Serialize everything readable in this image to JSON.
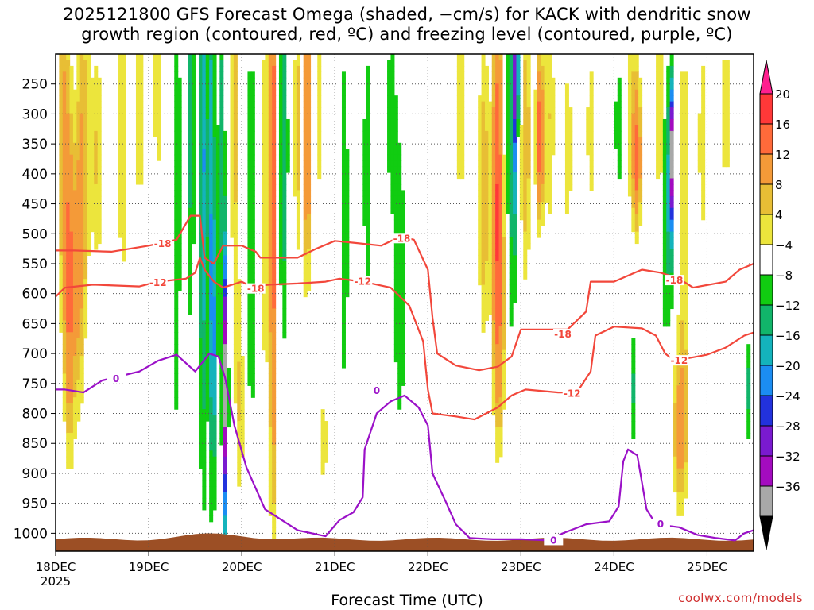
{
  "chart_data": {
    "type": "heatmap",
    "title_line1": "2025121800 GFS Forecast Omega (shaded, −cm/s) for KACK with dendritic snow",
    "title_line2": "growth region (contoured, red, ºC) and freezing level (contoured, purple, ºC)",
    "xlabel": "Forecast Time (UTC)",
    "ylabel": "Pressure (hPa)",
    "credit": "coolwx.com/models",
    "x_axis": {
      "range_days": [
        0,
        7.5
      ],
      "ticks": [
        {
          "day": 0,
          "label": "18DEC",
          "sublabel": "2025"
        },
        {
          "day": 1,
          "label": "19DEC"
        },
        {
          "day": 2,
          "label": "20DEC"
        },
        {
          "day": 3,
          "label": "21DEC"
        },
        {
          "day": 4,
          "label": "22DEC"
        },
        {
          "day": 5,
          "label": "23DEC"
        },
        {
          "day": 6,
          "label": "24DEC"
        },
        {
          "day": 7,
          "label": "25DEC"
        }
      ]
    },
    "y_axis": {
      "range_hpa": [
        200,
        1030
      ],
      "ticks": [
        250,
        300,
        350,
        400,
        450,
        500,
        550,
        600,
        650,
        700,
        750,
        800,
        850,
        900,
        950,
        1000
      ]
    },
    "colorbar": {
      "labels": [
        "20",
        "16",
        "12",
        "8",
        "4",
        "−4",
        "−8",
        "−12",
        "−16",
        "−20",
        "−24",
        "−28",
        "−32",
        "−36"
      ],
      "colors": [
        "#ff1f8f",
        "#ff3838",
        "#ff6a3a",
        "#f49a38",
        "#e8be35",
        "#ece53c",
        "#ffffff",
        "#11cc11",
        "#11b56a",
        "#14b3bc",
        "#1b8df2",
        "#2232dd",
        "#7a1ad0",
        "#a30bbf",
        "#a8a8a8",
        "#000000"
      ]
    },
    "contour_labels": {
      "dgz_upper": "-18",
      "dgz_lower": "-12",
      "freezing": "0"
    },
    "omega_blobs": [
      {
        "d": 0.08,
        "p": 320,
        "sd": 0.05,
        "sp": 280,
        "v": 8
      },
      {
        "d": 0.15,
        "p": 600,
        "sd": 0.04,
        "sp": 200,
        "v": 11
      },
      {
        "d": 0.3,
        "p": 330,
        "sd": 0.06,
        "sp": 200,
        "v": 7
      },
      {
        "d": 0.25,
        "p": 600,
        "sd": 0.05,
        "sp": 180,
        "v": 7
      },
      {
        "d": 0.45,
        "p": 380,
        "sd": 0.05,
        "sp": 160,
        "v": 6
      },
      {
        "d": 0.72,
        "p": 350,
        "sd": 0.05,
        "sp": 220,
        "v": 6
      },
      {
        "d": 0.9,
        "p": 300,
        "sd": 0.05,
        "sp": 200,
        "v": 5
      },
      {
        "d": 1.1,
        "p": 260,
        "sd": 0.06,
        "sp": 180,
        "v": 5
      },
      {
        "d": 1.3,
        "p": 420,
        "sd": 0.03,
        "sp": 320,
        "v": -8
      },
      {
        "d": 1.45,
        "p": 300,
        "sd": 0.03,
        "sp": 250,
        "v": -10
      },
      {
        "d": 1.58,
        "p": 380,
        "sd": 0.025,
        "sp": 350,
        "v": -18
      },
      {
        "d": 1.67,
        "p": 400,
        "sd": 0.03,
        "sp": 330,
        "v": -14
      },
      {
        "d": 1.78,
        "p": 330,
        "sd": 0.025,
        "sp": 250,
        "v": -9
      },
      {
        "d": 1.7,
        "p": 680,
        "sd": 0.025,
        "sp": 160,
        "v": -12
      },
      {
        "d": 1.82,
        "p": 760,
        "sd": 0.018,
        "sp": 170,
        "v": -34
      },
      {
        "d": 1.92,
        "p": 300,
        "sd": 0.035,
        "sp": 260,
        "v": 7
      },
      {
        "d": 1.98,
        "p": 780,
        "sd": 0.04,
        "sp": 160,
        "v": 6
      },
      {
        "d": 2.1,
        "p": 500,
        "sd": 0.04,
        "sp": 250,
        "v": -8
      },
      {
        "d": 2.25,
        "p": 450,
        "sd": 0.03,
        "sp": 380,
        "v": 6
      },
      {
        "d": 2.33,
        "p": 420,
        "sd": 0.02,
        "sp": 420,
        "v": 17
      },
      {
        "d": 2.45,
        "p": 350,
        "sd": 0.03,
        "sp": 220,
        "v": -12
      },
      {
        "d": 2.6,
        "p": 320,
        "sd": 0.035,
        "sp": 200,
        "v": 7
      },
      {
        "d": 2.7,
        "p": 320,
        "sd": 0.02,
        "sp": 200,
        "v": 16
      },
      {
        "d": 2.82,
        "p": 300,
        "sd": 0.03,
        "sp": 200,
        "v": 5
      },
      {
        "d": 2.88,
        "p": 850,
        "sd": 0.05,
        "sp": 80,
        "v": 5
      },
      {
        "d": 3.1,
        "p": 480,
        "sd": 0.04,
        "sp": 280,
        "v": -6
      },
      {
        "d": 3.35,
        "p": 400,
        "sd": 0.04,
        "sp": 200,
        "v": -6
      },
      {
        "d": 3.7,
        "p": 600,
        "sd": 0.05,
        "sp": 180,
        "v": -7
      },
      {
        "d": 3.6,
        "p": 300,
        "sd": 0.06,
        "sp": 150,
        "v": -5
      },
      {
        "d": 4.35,
        "p": 300,
        "sd": 0.05,
        "sp": 200,
        "v": 5
      },
      {
        "d": 4.6,
        "p": 430,
        "sd": 0.05,
        "sp": 200,
        "v": 8
      },
      {
        "d": 4.75,
        "p": 400,
        "sd": 0.04,
        "sp": 250,
        "v": 14
      },
      {
        "d": 4.78,
        "p": 640,
        "sd": 0.06,
        "sp": 170,
        "v": 6
      },
      {
        "d": 4.88,
        "p": 380,
        "sd": 0.025,
        "sp": 250,
        "v": -10
      },
      {
        "d": 4.92,
        "p": 350,
        "sd": 0.012,
        "sp": 160,
        "v": -22
      },
      {
        "d": 4.95,
        "p": 230,
        "sd": 0.025,
        "sp": 80,
        "v": -20
      },
      {
        "d": 5.05,
        "p": 350,
        "sd": 0.045,
        "sp": 190,
        "v": 8
      },
      {
        "d": 5.2,
        "p": 340,
        "sd": 0.03,
        "sp": 100,
        "v": 14
      },
      {
        "d": 5.3,
        "p": 300,
        "sd": 0.05,
        "sp": 180,
        "v": 6
      },
      {
        "d": 5.5,
        "p": 360,
        "sd": 0.06,
        "sp": 160,
        "v": 5
      },
      {
        "d": 5.75,
        "p": 330,
        "sd": 0.05,
        "sp": 150,
        "v": 5
      },
      {
        "d": 6.05,
        "p": 320,
        "sd": 0.04,
        "sp": 120,
        "v": -6
      },
      {
        "d": 6.2,
        "p": 300,
        "sd": 0.07,
        "sp": 160,
        "v": 6
      },
      {
        "d": 6.25,
        "p": 380,
        "sd": 0.03,
        "sp": 80,
        "v": 10
      },
      {
        "d": 6.2,
        "p": 760,
        "sd": 0.02,
        "sp": 70,
        "v": -9
      },
      {
        "d": 6.5,
        "p": 300,
        "sd": 0.06,
        "sp": 150,
        "v": 6
      },
      {
        "d": 6.55,
        "p": 400,
        "sd": 0.02,
        "sp": 200,
        "v": -10
      },
      {
        "d": 6.6,
        "p": 430,
        "sd": 0.018,
        "sp": 140,
        "v": -20
      },
      {
        "d": 6.62,
        "p": 360,
        "sd": 0.015,
        "sp": 80,
        "v": -26
      },
      {
        "d": 6.75,
        "p": 480,
        "sd": 0.05,
        "sp": 300,
        "v": 6
      },
      {
        "d": 6.7,
        "p": 830,
        "sd": 0.06,
        "sp": 100,
        "v": 8
      },
      {
        "d": 6.95,
        "p": 350,
        "sd": 0.05,
        "sp": 200,
        "v": 5
      },
      {
        "d": 7.2,
        "p": 300,
        "sd": 0.05,
        "sp": 160,
        "v": 5
      },
      {
        "d": 7.45,
        "p": 760,
        "sd": 0.02,
        "sp": 60,
        "v": -10
      }
    ],
    "dgz_upper_contour": [
      [
        0,
        528
      ],
      [
        0.2,
        528
      ],
      [
        0.6,
        530
      ],
      [
        1.0,
        520
      ],
      [
        1.3,
        510
      ],
      [
        1.45,
        470
      ],
      [
        1.55,
        470
      ],
      [
        1.6,
        540
      ],
      [
        1.7,
        550
      ],
      [
        1.8,
        520
      ],
      [
        2.0,
        520
      ],
      [
        2.15,
        530
      ],
      [
        2.2,
        540
      ],
      [
        2.6,
        540
      ],
      [
        2.8,
        525
      ],
      [
        3.0,
        512
      ],
      [
        3.2,
        515
      ],
      [
        3.5,
        520
      ],
      [
        3.7,
        505
      ],
      [
        3.85,
        510
      ],
      [
        4.0,
        560
      ],
      [
        4.05,
        640
      ],
      [
        4.1,
        700
      ],
      [
        4.3,
        720
      ],
      [
        4.55,
        728
      ],
      [
        4.75,
        722
      ],
      [
        4.9,
        705
      ],
      [
        5.0,
        660
      ],
      [
        5.3,
        660
      ],
      [
        5.5,
        660
      ],
      [
        5.7,
        630
      ],
      [
        5.75,
        580
      ],
      [
        6.0,
        580
      ],
      [
        6.3,
        560
      ],
      [
        6.5,
        565
      ],
      [
        6.7,
        575
      ],
      [
        6.85,
        590
      ],
      [
        7.2,
        580
      ],
      [
        7.35,
        560
      ],
      [
        7.5,
        550
      ]
    ],
    "dgz_lower_contour": [
      [
        0,
        605
      ],
      [
        0.1,
        590
      ],
      [
        0.4,
        585
      ],
      [
        0.9,
        588
      ],
      [
        1.1,
        580
      ],
      [
        1.4,
        575
      ],
      [
        1.5,
        565
      ],
      [
        1.55,
        540
      ],
      [
        1.6,
        560
      ],
      [
        1.7,
        580
      ],
      [
        1.8,
        590
      ],
      [
        2.0,
        580
      ],
      [
        2.1,
        588
      ],
      [
        2.3,
        585
      ],
      [
        2.6,
        583
      ],
      [
        2.9,
        580
      ],
      [
        3.05,
        575
      ],
      [
        3.3,
        580
      ],
      [
        3.6,
        590
      ],
      [
        3.8,
        620
      ],
      [
        3.95,
        680
      ],
      [
        4.0,
        760
      ],
      [
        4.05,
        800
      ],
      [
        4.3,
        805
      ],
      [
        4.5,
        810
      ],
      [
        4.75,
        790
      ],
      [
        4.9,
        770
      ],
      [
        5.05,
        760
      ],
      [
        5.4,
        765
      ],
      [
        5.6,
        765
      ],
      [
        5.75,
        730
      ],
      [
        5.8,
        670
      ],
      [
        6.0,
        655
      ],
      [
        6.3,
        658
      ],
      [
        6.45,
        670
      ],
      [
        6.55,
        700
      ],
      [
        6.65,
        712
      ],
      [
        7.0,
        702
      ],
      [
        7.2,
        690
      ],
      [
        7.4,
        670
      ],
      [
        7.5,
        665
      ]
    ],
    "freezing_contour": [
      [
        0,
        760
      ],
      [
        0.1,
        760
      ],
      [
        0.3,
        765
      ],
      [
        0.5,
        745
      ],
      [
        0.9,
        730
      ],
      [
        1.1,
        712
      ],
      [
        1.3,
        702
      ],
      [
        1.5,
        730
      ],
      [
        1.65,
        700
      ],
      [
        1.75,
        705
      ],
      [
        1.82,
        740
      ],
      [
        1.92,
        820
      ],
      [
        2.05,
        890
      ],
      [
        2.25,
        960
      ],
      [
        2.45,
        980
      ],
      [
        2.6,
        995
      ],
      [
        2.9,
        1005
      ],
      [
        3.05,
        978
      ],
      [
        3.2,
        965
      ],
      [
        3.3,
        940
      ],
      [
        3.32,
        860
      ],
      [
        3.45,
        800
      ],
      [
        3.6,
        780
      ],
      [
        3.75,
        770
      ],
      [
        3.9,
        790
      ],
      [
        4.0,
        820
      ],
      [
        4.05,
        900
      ],
      [
        4.2,
        950
      ],
      [
        4.3,
        985
      ],
      [
        4.45,
        1008
      ],
      [
        4.7,
        1010
      ],
      [
        5.0,
        1010
      ],
      [
        5.3,
        1012
      ],
      [
        5.45,
        1000
      ],
      [
        5.7,
        985
      ],
      [
        5.95,
        980
      ],
      [
        6.05,
        955
      ],
      [
        6.1,
        880
      ],
      [
        6.15,
        860
      ],
      [
        6.25,
        870
      ],
      [
        6.35,
        960
      ],
      [
        6.45,
        985
      ],
      [
        6.7,
        990
      ],
      [
        6.9,
        1003
      ],
      [
        7.1,
        1008
      ],
      [
        7.3,
        1012
      ],
      [
        7.4,
        1000
      ],
      [
        7.5,
        995
      ]
    ],
    "dgz_label_points": [
      {
        "d": 1.15,
        "p": 517,
        "which": "dgz_upper"
      },
      {
        "d": 2.15,
        "p": 592,
        "which": "dgz_upper"
      },
      {
        "d": 3.72,
        "p": 508,
        "which": "dgz_upper"
      },
      {
        "d": 5.45,
        "p": 668,
        "which": "dgz_upper"
      },
      {
        "d": 6.65,
        "p": 578,
        "which": "dgz_upper"
      },
      {
        "d": 1.1,
        "p": 582,
        "which": "dgz_lower"
      },
      {
        "d": 3.3,
        "p": 580,
        "which": "dgz_lower"
      },
      {
        "d": 5.55,
        "p": 767,
        "which": "dgz_lower"
      },
      {
        "d": 6.7,
        "p": 712,
        "which": "dgz_lower"
      },
      {
        "d": 0.65,
        "p": 742,
        "which": "freezing"
      },
      {
        "d": 3.45,
        "p": 762,
        "which": "freezing"
      },
      {
        "d": 5.35,
        "p": 1012,
        "which": "freezing"
      },
      {
        "d": 6.5,
        "p": 985,
        "which": "freezing"
      }
    ],
    "terrain_pressure_hpa": 1010
  }
}
